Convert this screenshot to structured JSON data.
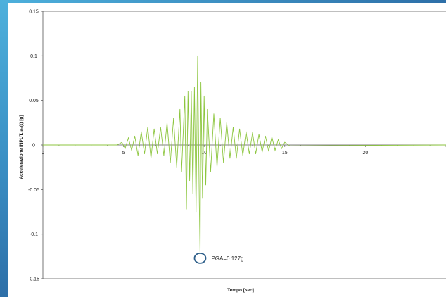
{
  "chart_data": {
    "type": "line",
    "title": "",
    "xlabel": "Tempo [sec]",
    "ylabel": "Accelerazione INPUT, a₀(t) [g]",
    "xlim": [
      0,
      25
    ],
    "ylim": [
      -0.15,
      0.15
    ],
    "x_ticks": [
      "0",
      "5",
      "10",
      "15",
      "20"
    ],
    "x_tick_values": [
      0,
      5,
      10,
      15,
      20
    ],
    "y_ticks": [
      "0.15",
      "0.1",
      "0.05",
      "0",
      "-0.05",
      "-0.1",
      "-0.15"
    ],
    "y_tick_values": [
      0.15,
      0.1,
      0.05,
      0,
      -0.05,
      -0.1,
      -0.15
    ],
    "grid": false,
    "series": [
      {
        "color": "#8dc63f",
        "x": [
          0,
          4.6,
          4.9,
          5.1,
          5.3,
          5.5,
          5.7,
          5.9,
          6.1,
          6.3,
          6.5,
          6.7,
          6.9,
          7.1,
          7.3,
          7.5,
          7.7,
          7.9,
          8.1,
          8.3,
          8.5,
          8.6,
          8.8,
          8.9,
          9.0,
          9.1,
          9.2,
          9.3,
          9.4,
          9.5,
          9.6,
          9.7,
          9.75,
          9.8,
          9.9,
          10.0,
          10.1,
          10.2,
          10.4,
          10.6,
          10.8,
          11.0,
          11.2,
          11.4,
          11.6,
          11.8,
          12.0,
          12.2,
          12.4,
          12.6,
          12.8,
          13.0,
          13.2,
          13.4,
          13.6,
          13.8,
          14.0,
          14.2,
          14.4,
          14.6,
          14.8,
          15.0,
          15.3,
          25
        ],
        "y": [
          0,
          0,
          0.003,
          -0.004,
          0.008,
          -0.006,
          0.01,
          -0.012,
          0.015,
          -0.01,
          0.02,
          -0.015,
          0.018,
          -0.01,
          0.02,
          -0.012,
          0.025,
          -0.02,
          0.03,
          -0.025,
          0.04,
          -0.03,
          0.055,
          -0.072,
          0.06,
          -0.04,
          0.06,
          -0.055,
          0.065,
          -0.075,
          0.1,
          -0.065,
          -0.127,
          0.07,
          -0.06,
          0.055,
          -0.045,
          0.04,
          -0.03,
          0.035,
          -0.025,
          0.03,
          -0.02,
          0.025,
          -0.015,
          0.02,
          -0.015,
          0.018,
          -0.012,
          0.015,
          -0.01,
          0.014,
          -0.01,
          0.012,
          -0.008,
          0.01,
          -0.007,
          0.009,
          -0.006,
          0.006,
          -0.004,
          0.003,
          -0.001,
          0
        ]
      }
    ],
    "annotations": [
      {
        "text": "PGA=0.127g",
        "x": 9.75,
        "y": -0.127,
        "marker": "circle",
        "marker_color": "#2e5f8a"
      }
    ]
  }
}
